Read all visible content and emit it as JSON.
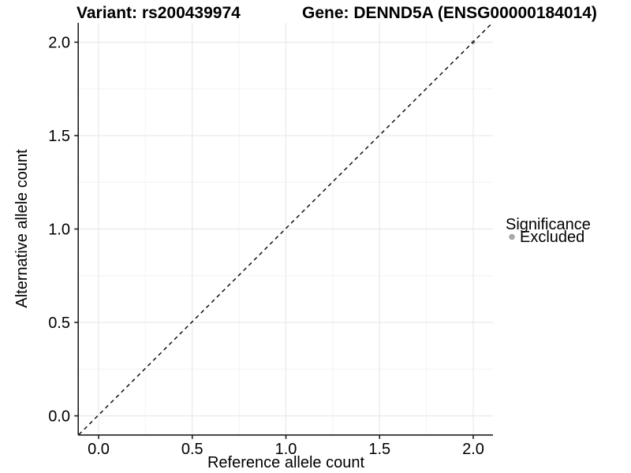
{
  "chart_data": {
    "type": "scatter",
    "title_left": "Variant: rs200439974",
    "title_right": "Gene: DENND5A (ENSG00000184014)",
    "xlabel": "Reference allele count",
    "ylabel": "Alternative allele count",
    "xlim": [
      -0.105,
      2.105
    ],
    "ylim": [
      -0.105,
      2.105
    ],
    "x_ticks": [
      "0.0",
      "0.5",
      "1.0",
      "1.5",
      "2.0"
    ],
    "y_ticks": [
      "0.0",
      "0.5",
      "1.0",
      "1.5",
      "2.0"
    ],
    "grid": "on",
    "gridline_major_color": "#e9e9e9",
    "gridline_minor_color": "#f4f4f4",
    "axis_line_color": "#1f1f1f",
    "points": [
      {
        "x": 2.0,
        "y": 2.0,
        "significance": "Excluded",
        "color": "#a8a8a8"
      }
    ],
    "reference_line": {
      "type": "identity y=x",
      "style": "dashed",
      "color": "#000000",
      "from": [
        -0.105,
        -0.105
      ],
      "to": [
        2.105,
        2.105
      ]
    },
    "legend": {
      "position": "right",
      "title": "Significance",
      "items": [
        {
          "label": "Excluded",
          "color": "#a8a8a8",
          "marker": "circle"
        }
      ]
    }
  }
}
